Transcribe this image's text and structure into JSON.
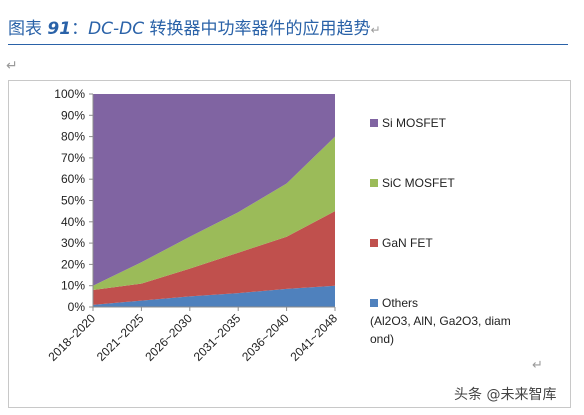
{
  "header": {
    "title_prefix": "图表",
    "figure_number": "91",
    "title_colon": "：",
    "title_subject": "DC-DC",
    "title_rest": "转换器中功率器件的应用趋势",
    "return_mark": "↵"
  },
  "paragraph_mark": "↵",
  "corner_return_mark": "↵",
  "watermark": "头条 @未来智库",
  "colors": {
    "title": "#2a62a8",
    "si_mosfet": "#8064a2",
    "sic_mosfet": "#9bbb59",
    "gan_fet": "#c0504d",
    "others": "#4f81bd"
  },
  "chart_data": {
    "type": "area",
    "stacked": true,
    "title": "",
    "xlabel": "",
    "ylabel": "",
    "ylim": [
      0,
      100
    ],
    "grid": false,
    "legend_position": "right",
    "categories": [
      "2018~2020",
      "2021~2025",
      "2026~2030",
      "2031~2035",
      "2036~2040",
      "2041~2048"
    ],
    "y_ticks": [
      "0%",
      "10%",
      "20%",
      "30%",
      "40%",
      "50%",
      "60%",
      "70%",
      "80%",
      "90%",
      "100%"
    ],
    "series": [
      {
        "name": "Others (Al2O3, AlN, Ga2O3, diamond)",
        "legend_lines": [
          "Others",
          "(Al2O3, AlN, Ga2O3, diam",
          "ond)"
        ],
        "color": "#4f81bd",
        "values": [
          1,
          3,
          5,
          6.5,
          8.5,
          10
        ]
      },
      {
        "name": "GaN FET",
        "legend_lines": [
          "GaN FET"
        ],
        "color": "#c0504d",
        "values": [
          7,
          8,
          13,
          19,
          24.5,
          35
        ]
      },
      {
        "name": "SiC MOSFET",
        "legend_lines": [
          "SiC MOSFET"
        ],
        "color": "#9bbb59",
        "values": [
          2,
          10,
          15,
          19,
          25,
          35
        ]
      },
      {
        "name": "Si MOSFET",
        "legend_lines": [
          "Si MOSFET"
        ],
        "color": "#8064a2",
        "values": [
          90,
          79,
          67,
          55.5,
          42,
          20
        ]
      }
    ]
  }
}
